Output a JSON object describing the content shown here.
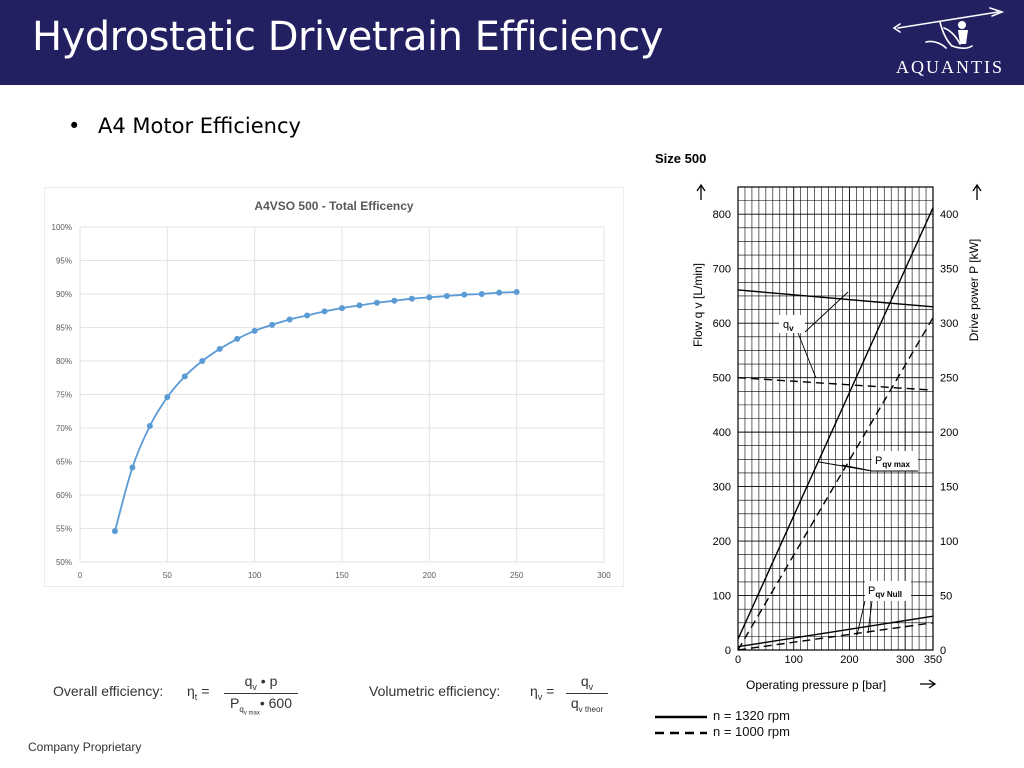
{
  "header": {
    "title": "Hydrostatic Drivetrain Efficiency",
    "logo_text": "AQUANTIS",
    "logo_icon": "trident-rider-logo"
  },
  "content": {
    "bullet": "A4 Motor Efficiency"
  },
  "footer": {
    "text": "Company Proprietary"
  },
  "colors": {
    "header_bg": "#232062",
    "series": "#5B9BD5"
  },
  "formulas": {
    "overall": {
      "label": "Overall efficiency:",
      "symbol": "η",
      "sub": "t",
      "num": "q",
      "num_sub": "v",
      "num_rest": "• p",
      "den": "P",
      "den_sub": "q",
      "den_sub2": "v max",
      "den_rest": "• 600"
    },
    "volumetric": {
      "label": "Volumetric efficiency:",
      "symbol": "η",
      "sub": "v",
      "num": "q",
      "num_sub": "v",
      "den": "q",
      "den_sub": "v theor"
    }
  },
  "chart_data": [
    {
      "type": "line",
      "title": "A4VSO 500 - Total Efficency",
      "x": [
        20,
        30,
        40,
        50,
        60,
        70,
        80,
        90,
        100,
        110,
        120,
        130,
        140,
        150,
        160,
        170,
        180,
        190,
        200,
        210,
        220,
        230,
        240,
        250
      ],
      "y": [
        54.6,
        64.1,
        70.3,
        74.6,
        77.7,
        80.0,
        81.8,
        83.3,
        84.5,
        85.4,
        86.2,
        86.8,
        87.4,
        87.9,
        88.3,
        88.7,
        89.0,
        89.3,
        89.5,
        89.7,
        89.9,
        90.0,
        90.2,
        90.3
      ],
      "xlim": [
        0,
        300
      ],
      "ylim": [
        50,
        100
      ],
      "x_ticks": [
        "0",
        "50",
        "100",
        "150",
        "200",
        "250",
        "300"
      ],
      "y_ticks": [
        "50%",
        "55%",
        "60%",
        "65%",
        "70%",
        "75%",
        "80%",
        "85%",
        "90%",
        "95%",
        "100%"
      ],
      "grid": true
    },
    {
      "type": "line",
      "title": "Size 500",
      "xlabel": "Operating pressure p [bar]",
      "ylabel_left": "Flow q v [L/min]",
      "ylabel_right": "Drive power P [kW]",
      "xlim": [
        0,
        350
      ],
      "ylim_left": [
        0,
        850
      ],
      "ylim_right": [
        0,
        425
      ],
      "x_ticks": [
        "0",
        "100",
        "200",
        "300",
        "350"
      ],
      "y_left_ticks": [
        "0",
        "100",
        "200",
        "300",
        "400",
        "500",
        "600",
        "700",
        "800"
      ],
      "y_right_ticks": [
        "0",
        "50",
        "100",
        "150",
        "200",
        "250",
        "300",
        "350",
        "400"
      ],
      "series": [
        {
          "name": "qv",
          "rpm": "n = 1320 rpm",
          "style": "solid",
          "axis": "left",
          "x": [
            0,
            350
          ],
          "y": [
            661,
            630
          ]
        },
        {
          "name": "qv",
          "rpm": "n = 1000 rpm",
          "style": "dashed",
          "axis": "left",
          "x": [
            0,
            350
          ],
          "y": [
            500,
            477
          ]
        },
        {
          "name": "P qv max",
          "rpm": "n = 1320 rpm",
          "style": "solid",
          "axis": "right",
          "x": [
            0,
            350
          ],
          "y": [
            10,
            406
          ]
        },
        {
          "name": "P qv max",
          "rpm": "n = 1000 rpm",
          "style": "dashed",
          "axis": "right",
          "x": [
            0,
            350
          ],
          "y": [
            0,
            305
          ]
        },
        {
          "name": "P qv Null",
          "rpm": "n = 1320 rpm",
          "style": "solid",
          "axis": "right",
          "x": [
            0,
            350
          ],
          "y": [
            3,
            31
          ]
        },
        {
          "name": "P qv Null",
          "rpm": "n = 1000 rpm",
          "style": "dashed",
          "axis": "right",
          "x": [
            0,
            350
          ],
          "y": [
            0,
            25
          ]
        }
      ],
      "annotations": [
        {
          "text": "q",
          "sub": "v"
        },
        {
          "text": "P",
          "sub": "qv max"
        },
        {
          "text": "P",
          "sub": "qv Null"
        }
      ],
      "legend": [
        {
          "style": "solid",
          "label": "n = 1320 rpm"
        },
        {
          "style": "dashed",
          "label": "n = 1000 rpm"
        }
      ]
    }
  ]
}
